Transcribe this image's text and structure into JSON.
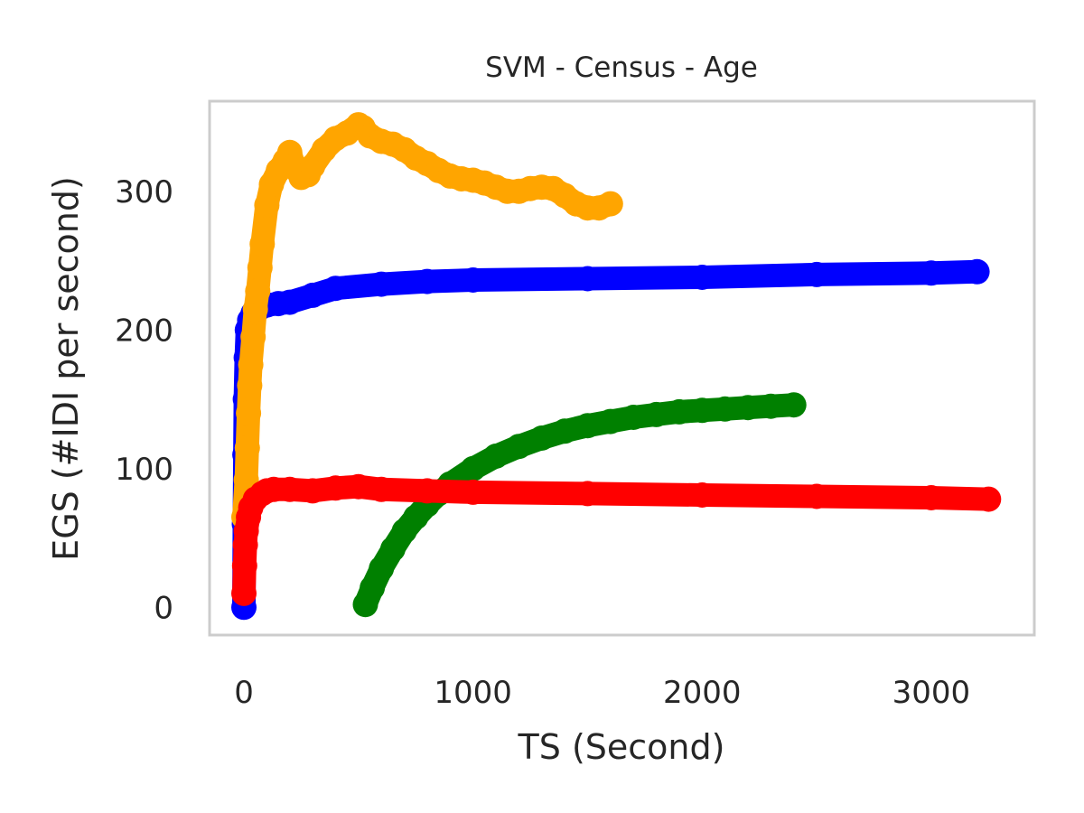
{
  "chart_data": {
    "type": "line",
    "title": "SVM - Census - Age",
    "xlabel": "TS (Second)",
    "ylabel": "EGS (#IDI  per second)",
    "xlim": [
      -150,
      3450
    ],
    "ylim": [
      -20,
      365
    ],
    "xticks": [
      0,
      1000,
      2000,
      3000
    ],
    "yticks": [
      0,
      100,
      200,
      300
    ],
    "grid": false,
    "series": [
      {
        "color": "#0000ff",
        "x": [
          0,
          2,
          4,
          6,
          10,
          15,
          25,
          40,
          70,
          100,
          150,
          200,
          300,
          400,
          600,
          800,
          1000,
          1500,
          2000,
          2500,
          3000,
          3200
        ],
        "y": [
          0,
          60,
          110,
          150,
          180,
          200,
          207,
          212,
          216,
          218,
          219,
          220,
          225,
          230,
          233,
          235,
          236,
          237,
          238,
          240,
          241,
          242
        ]
      },
      {
        "color": "#ffa500",
        "x": [
          0,
          10,
          15,
          20,
          25,
          30,
          40,
          50,
          60,
          70,
          80,
          100,
          120,
          150,
          180,
          200,
          220,
          250,
          280,
          300,
          350,
          400,
          450,
          500,
          520,
          550,
          600,
          650,
          700,
          750,
          800,
          850,
          900,
          950,
          1000,
          1050,
          1100,
          1150,
          1200,
          1250,
          1300,
          1350,
          1400,
          1450,
          1500,
          1550,
          1600
        ],
        "y": [
          65,
          92,
          115,
          140,
          160,
          175,
          195,
          215,
          228,
          245,
          262,
          290,
          305,
          315,
          322,
          328,
          318,
          310,
          312,
          318,
          330,
          338,
          342,
          348,
          346,
          340,
          336,
          334,
          330,
          324,
          320,
          315,
          311,
          309,
          308,
          306,
          303,
          300,
          300,
          302,
          303,
          302,
          297,
          291,
          288,
          288,
          291
        ]
      },
      {
        "color": "#008000",
        "x": [
          530,
          560,
          600,
          650,
          700,
          750,
          800,
          850,
          900,
          1000,
          1100,
          1200,
          1300,
          1400,
          1500,
          1600,
          1700,
          1800,
          1900,
          2000,
          2100,
          2200,
          2300,
          2400
        ],
        "y": [
          2,
          14,
          28,
          42,
          55,
          65,
          74,
          82,
          89,
          100,
          109,
          116,
          122,
          127,
          131,
          134,
          137,
          139,
          141,
          142,
          143,
          144,
          145,
          146
        ]
      },
      {
        "color": "#ff0000",
        "x": [
          0,
          3,
          6,
          10,
          20,
          30,
          50,
          80,
          100,
          130,
          200,
          300,
          400,
          500,
          600,
          800,
          1000,
          1500,
          2000,
          2500,
          3000,
          3250
        ],
        "y": [
          10,
          30,
          45,
          55,
          65,
          72,
          78,
          82,
          84,
          85,
          85,
          84,
          86,
          87,
          85,
          84,
          83,
          82,
          81,
          80,
          79,
          78
        ]
      }
    ]
  }
}
